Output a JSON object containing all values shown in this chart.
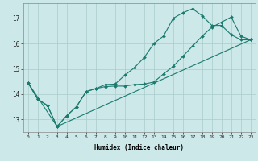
{
  "xlabel": "Humidex (Indice chaleur)",
  "bg_color": "#cce8e8",
  "grid_color": "#aacccc",
  "line_color": "#1a7a6e",
  "xlim": [
    -0.5,
    23.5
  ],
  "ylim": [
    12.5,
    17.6
  ],
  "xticks": [
    0,
    1,
    2,
    3,
    4,
    5,
    6,
    7,
    8,
    9,
    10,
    11,
    12,
    13,
    14,
    15,
    16,
    17,
    18,
    19,
    20,
    21,
    22,
    23
  ],
  "yticks": [
    13,
    14,
    15,
    16,
    17
  ],
  "line1_x": [
    0,
    1,
    2,
    3,
    4,
    5,
    6,
    7,
    8,
    9,
    10,
    11,
    12,
    13,
    14,
    15,
    16,
    17,
    18,
    19,
    20,
    21,
    22,
    23
  ],
  "line1_y": [
    14.45,
    13.8,
    13.55,
    12.72,
    13.15,
    13.5,
    14.1,
    14.22,
    14.3,
    14.32,
    14.32,
    14.38,
    14.4,
    14.48,
    14.8,
    15.1,
    15.5,
    15.9,
    16.3,
    16.65,
    16.85,
    17.05,
    16.3,
    16.15
  ],
  "line2_x": [
    0,
    1,
    2,
    3,
    4,
    5,
    6,
    7,
    8,
    9,
    10,
    11,
    12,
    13,
    14,
    15,
    16,
    17,
    18,
    19,
    20,
    21,
    22,
    23
  ],
  "line2_y": [
    14.45,
    13.8,
    13.55,
    12.72,
    13.15,
    13.5,
    14.1,
    14.22,
    14.38,
    14.4,
    14.75,
    15.05,
    15.45,
    16.0,
    16.3,
    17.0,
    17.22,
    17.38,
    17.1,
    16.72,
    16.72,
    16.35,
    16.15,
    16.15
  ],
  "line3_x": [
    0,
    3,
    23
  ],
  "line3_y": [
    14.45,
    12.72,
    16.15
  ]
}
